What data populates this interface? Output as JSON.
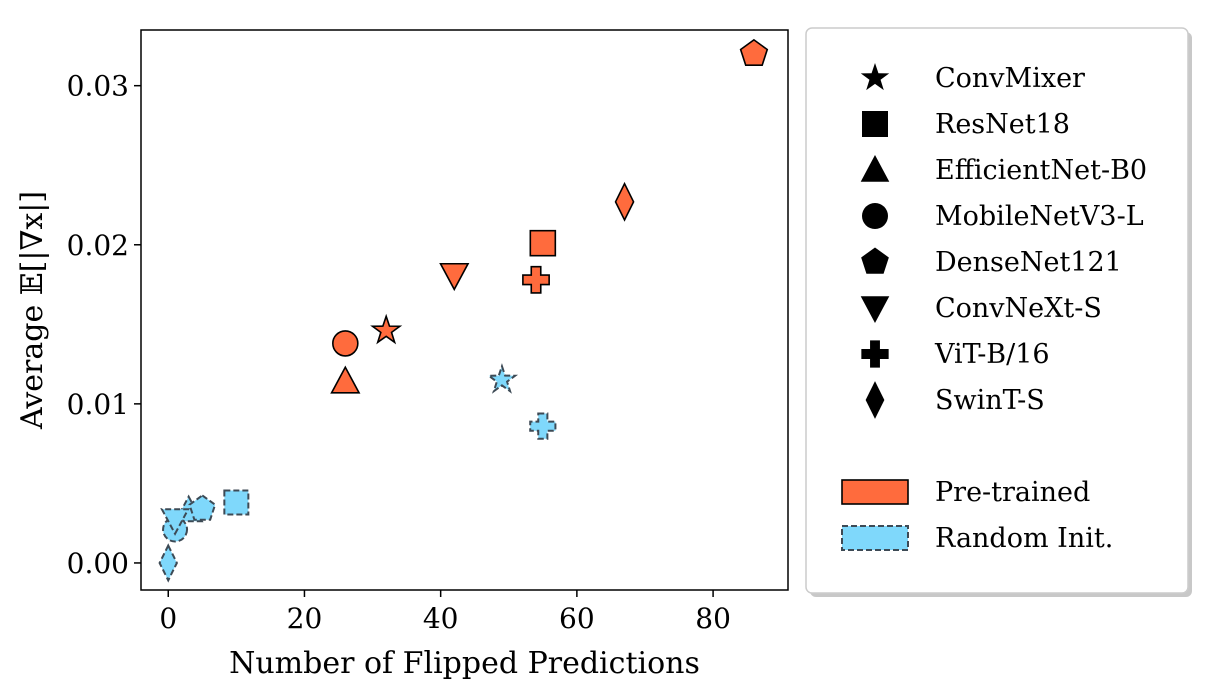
{
  "chart_data": {
    "type": "scatter",
    "xlabel": "Number of Flipped Predictions",
    "ylabel": "Average 𝔼[|∇x|]",
    "xlim": [
      -4,
      91
    ],
    "ylim": [
      -0.0017,
      0.0335
    ],
    "xticks": [
      0,
      20,
      40,
      60,
      80
    ],
    "yticks": [
      0.0,
      0.01,
      0.02,
      0.03
    ],
    "xtick_labels": [
      "0",
      "20",
      "40",
      "60",
      "80"
    ],
    "ytick_labels": [
      "0.00",
      "0.01",
      "0.02",
      "0.03"
    ],
    "grid": false,
    "legend_position": "outside-right",
    "marker_legend": [
      {
        "label": "ConvMixer",
        "marker": "star"
      },
      {
        "label": "ResNet18",
        "marker": "square"
      },
      {
        "label": "EfficientNet-B0",
        "marker": "triangle-up"
      },
      {
        "label": "MobileNetV3-L",
        "marker": "circle"
      },
      {
        "label": "DenseNet121",
        "marker": "pentagon"
      },
      {
        "label": "ConvNeXt-S",
        "marker": "triangle-down"
      },
      {
        "label": "ViT-B/16",
        "marker": "plus"
      },
      {
        "label": "SwinT-S",
        "marker": "diamond"
      }
    ],
    "series": [
      {
        "name": "Pre-trained",
        "color": "#ff6b3d",
        "edge": "#000000",
        "dashed": false,
        "points": [
          {
            "model": "ConvMixer",
            "marker": "star",
            "x": 32,
            "y": 0.0146
          },
          {
            "model": "ResNet18",
            "marker": "square",
            "x": 55,
            "y": 0.0201
          },
          {
            "model": "EfficientNet-B0",
            "marker": "triangle-up",
            "x": 26,
            "y": 0.0114
          },
          {
            "model": "MobileNetV3-L",
            "marker": "circle",
            "x": 26,
            "y": 0.0138
          },
          {
            "model": "DenseNet121",
            "marker": "pentagon",
            "x": 86,
            "y": 0.032
          },
          {
            "model": "ConvNeXt-S",
            "marker": "triangle-down",
            "x": 42,
            "y": 0.0181
          },
          {
            "model": "ViT-B/16",
            "marker": "plus",
            "x": 54,
            "y": 0.0178
          },
          {
            "model": "SwinT-S",
            "marker": "diamond",
            "x": 67,
            "y": 0.0227
          }
        ]
      },
      {
        "name": "Random Init.",
        "color": "#7fd8fb",
        "edge": "#3d4a55",
        "dashed": true,
        "points": [
          {
            "model": "ConvMixer",
            "marker": "star",
            "x": 49,
            "y": 0.0115
          },
          {
            "model": "ResNet18",
            "marker": "square",
            "x": 10,
            "y": 0.0038
          },
          {
            "model": "EfficientNet-B0",
            "marker": "triangle-up",
            "x": 3,
            "y": 0.0033
          },
          {
            "model": "MobileNetV3-L",
            "marker": "circle",
            "x": 1,
            "y": 0.0021
          },
          {
            "model": "DenseNet121",
            "marker": "pentagon",
            "x": 5,
            "y": 0.0034
          },
          {
            "model": "ConvNeXt-S",
            "marker": "triangle-down",
            "x": 1,
            "y": 0.0027
          },
          {
            "model": "ViT-B/16",
            "marker": "plus",
            "x": 55,
            "y": 0.0086
          },
          {
            "model": "SwinT-S",
            "marker": "diamond",
            "x": 0,
            "y": 0.0
          }
        ]
      }
    ]
  }
}
